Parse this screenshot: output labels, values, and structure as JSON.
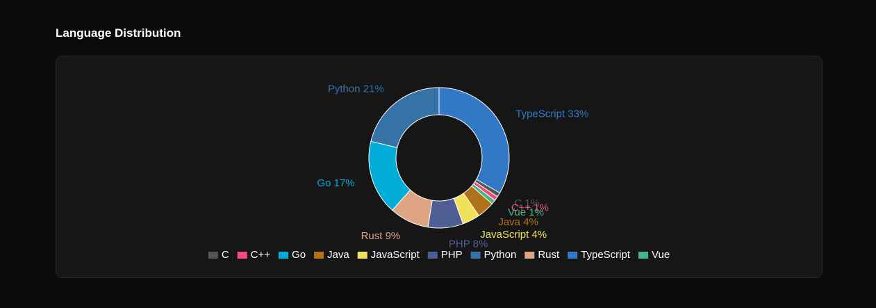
{
  "header": {
    "title": "Language Distribution"
  },
  "chart_data": {
    "type": "pie",
    "donut": true,
    "categories": [
      "TypeScript",
      "C",
      "C++",
      "Vue",
      "Java",
      "JavaScript",
      "PHP",
      "Rust",
      "Go",
      "Python"
    ],
    "values": [
      33,
      1,
      1,
      1,
      4,
      4,
      8,
      9,
      17,
      21
    ],
    "value_labels": [
      "TypeScript 33%",
      "C 1%",
      "C++ 1%",
      "Vue 1%",
      "Java 4%",
      "JavaScript 4%",
      "PHP 8%",
      "Rust 9%",
      "Go 17%",
      "Python 21%"
    ],
    "colors": [
      "#3178c6",
      "#555555",
      "#f34b7d",
      "#41b883",
      "#b07219",
      "#f1e05a",
      "#4f5d95",
      "#dea584",
      "#00add8",
      "#3572a5"
    ],
    "legend": [
      "C",
      "C++",
      "Go",
      "Java",
      "JavaScript",
      "PHP",
      "Python",
      "Rust",
      "TypeScript",
      "Vue"
    ]
  }
}
